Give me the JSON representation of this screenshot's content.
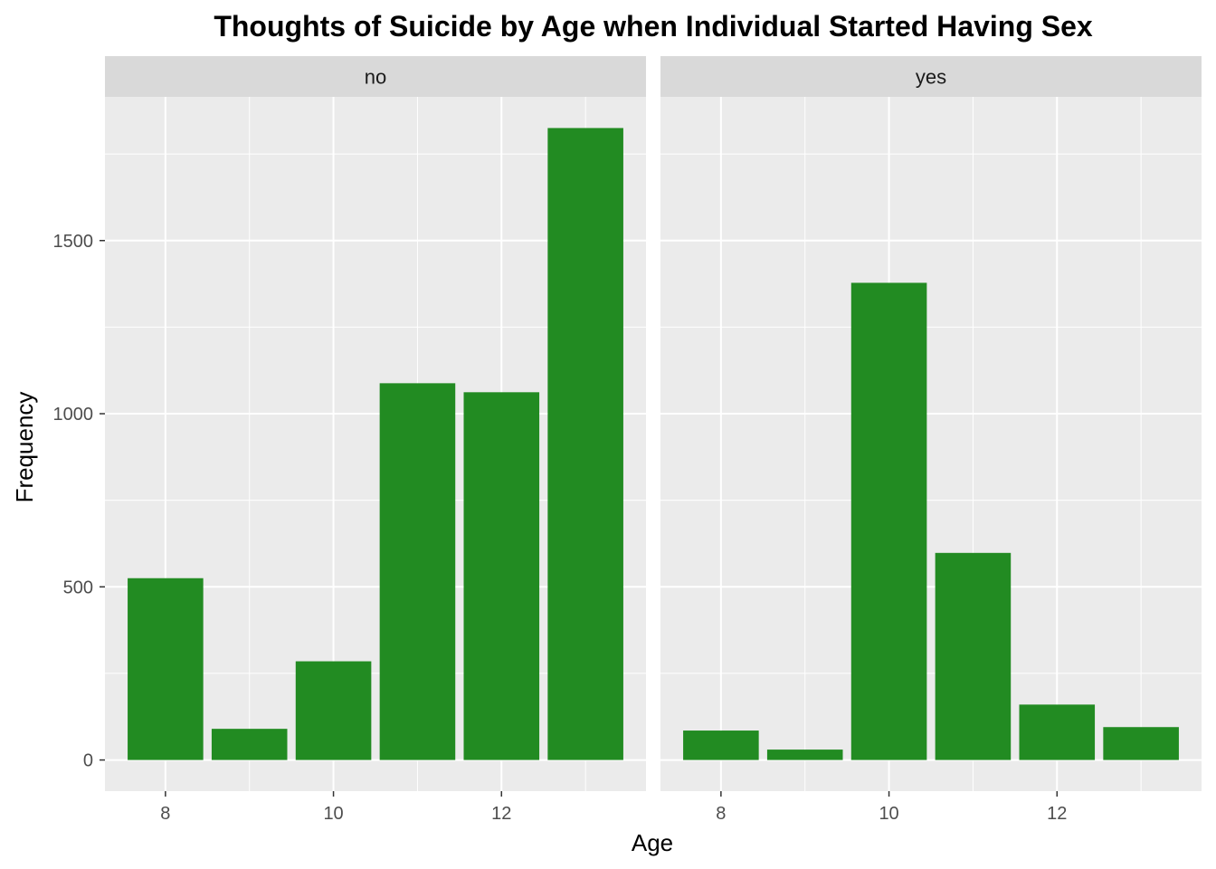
{
  "chart_data": {
    "type": "bar",
    "title": "Thoughts of Suicide by Age when Individual Started Having Sex",
    "xlabel": "Age",
    "ylabel": "Frequency",
    "x": [
      8,
      9,
      10,
      11,
      12,
      13
    ],
    "x_ticks": [
      8,
      10,
      12
    ],
    "y_ticks": [
      0,
      500,
      1000,
      1500
    ],
    "xlim": [
      7.28,
      13.72
    ],
    "ylim": [
      -90,
      1915
    ],
    "bar_color": "#228B22",
    "panel_background": "#EBEBEB",
    "strip_background": "#D9D9D9",
    "grid": true,
    "legend": "none",
    "facets": [
      {
        "label": "no",
        "values": [
          525,
          90,
          285,
          1088,
          1062,
          1825
        ]
      },
      {
        "label": "yes",
        "values": [
          85,
          30,
          1378,
          598,
          160,
          95
        ]
      }
    ]
  }
}
